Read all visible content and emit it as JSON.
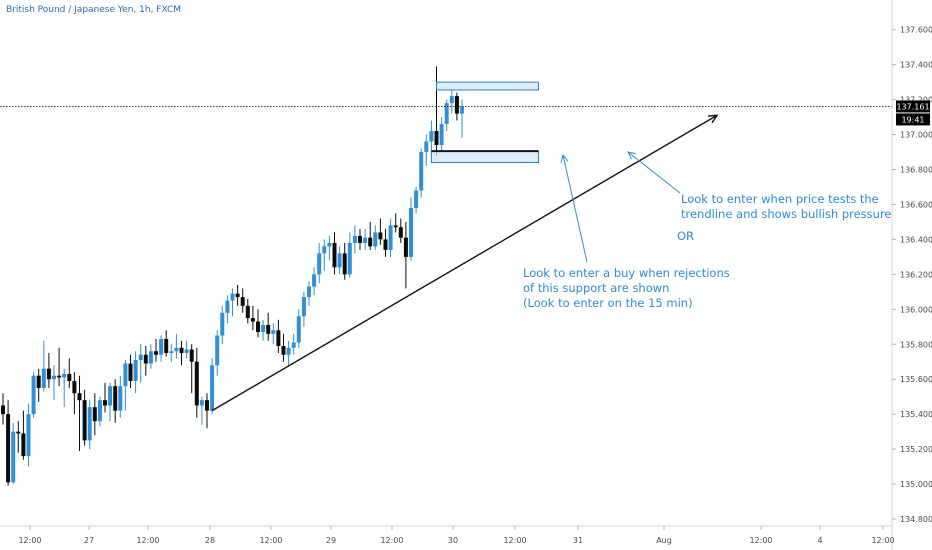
{
  "header": {
    "symbol_label": "British Pound / Japanese Yen, 1h, FXCM"
  },
  "price_axis": {
    "ticks": [
      "137.600",
      "137.400",
      "137.200",
      "137.000",
      "136.800",
      "136.600",
      "136.400",
      "136.200",
      "136.000",
      "135.800",
      "135.600",
      "135.400",
      "135.200",
      "135.000",
      "134.800"
    ],
    "last_price": "137.161",
    "countdown": "19:41"
  },
  "time_axis": {
    "ticks": [
      "12:00",
      "27",
      "12:00",
      "28",
      "12:00",
      "29",
      "12:00",
      "30",
      "12:00",
      "31",
      "Aug",
      "12:00",
      "4",
      "12:00"
    ]
  },
  "annotations": {
    "note1": [
      "Look to enter when price tests the",
      "trendline and shows bullish pressure"
    ],
    "or": "OR",
    "note2": [
      "Look to enter a buy when rejections",
      " of this support are shown",
      "(Look to enter on the 15 min)"
    ]
  },
  "colors": {
    "up": "#2f8fd8",
    "down": "#0b0b0b",
    "annotation": "#2e8cd0",
    "zone_fill": "#cfe6fa",
    "zone_border": "#2a7fc8"
  },
  "chart_data": {
    "type": "candlestick",
    "title": "British Pound / Japanese Yen, 1h, FXCM",
    "ylim": [
      134.76,
      137.77
    ],
    "candles": [
      {
        "o": 135.45,
        "h": 135.52,
        "l": 135.34,
        "c": 135.4
      },
      {
        "o": 135.4,
        "h": 135.48,
        "l": 134.99,
        "c": 135.01
      },
      {
        "o": 135.01,
        "h": 135.35,
        "l": 135.0,
        "c": 135.3
      },
      {
        "o": 135.3,
        "h": 135.36,
        "l": 135.18,
        "c": 135.29
      },
      {
        "o": 135.29,
        "h": 135.42,
        "l": 135.14,
        "c": 135.16
      },
      {
        "o": 135.16,
        "h": 135.46,
        "l": 135.1,
        "c": 135.4
      },
      {
        "o": 135.4,
        "h": 135.64,
        "l": 135.38,
        "c": 135.62
      },
      {
        "o": 135.62,
        "h": 135.66,
        "l": 135.47,
        "c": 135.55
      },
      {
        "o": 135.55,
        "h": 135.82,
        "l": 135.53,
        "c": 135.66
      },
      {
        "o": 135.66,
        "h": 135.75,
        "l": 135.55,
        "c": 135.6
      },
      {
        "o": 135.6,
        "h": 135.68,
        "l": 135.48,
        "c": 135.62
      },
      {
        "o": 135.62,
        "h": 135.78,
        "l": 135.56,
        "c": 135.61
      },
      {
        "o": 135.61,
        "h": 135.66,
        "l": 135.44,
        "c": 135.63
      },
      {
        "o": 135.63,
        "h": 135.72,
        "l": 135.55,
        "c": 135.59
      },
      {
        "o": 135.59,
        "h": 135.64,
        "l": 135.4,
        "c": 135.52
      },
      {
        "o": 135.52,
        "h": 135.62,
        "l": 135.19,
        "c": 135.48
      },
      {
        "o": 135.48,
        "h": 135.54,
        "l": 135.22,
        "c": 135.25
      },
      {
        "o": 135.25,
        "h": 135.48,
        "l": 135.2,
        "c": 135.44
      },
      {
        "o": 135.44,
        "h": 135.52,
        "l": 135.28,
        "c": 135.36
      },
      {
        "o": 135.36,
        "h": 135.5,
        "l": 135.33,
        "c": 135.48
      },
      {
        "o": 135.48,
        "h": 135.58,
        "l": 135.41,
        "c": 135.45
      },
      {
        "o": 135.45,
        "h": 135.58,
        "l": 135.36,
        "c": 135.56
      },
      {
        "o": 135.56,
        "h": 135.6,
        "l": 135.35,
        "c": 135.42
      },
      {
        "o": 135.42,
        "h": 135.62,
        "l": 135.38,
        "c": 135.56
      },
      {
        "o": 135.56,
        "h": 135.71,
        "l": 135.42,
        "c": 135.69
      },
      {
        "o": 135.69,
        "h": 135.74,
        "l": 135.55,
        "c": 135.59
      },
      {
        "o": 135.59,
        "h": 135.76,
        "l": 135.52,
        "c": 135.71
      },
      {
        "o": 135.71,
        "h": 135.8,
        "l": 135.58,
        "c": 135.74
      },
      {
        "o": 135.74,
        "h": 135.79,
        "l": 135.62,
        "c": 135.69
      },
      {
        "o": 135.69,
        "h": 135.8,
        "l": 135.66,
        "c": 135.76
      },
      {
        "o": 135.76,
        "h": 135.83,
        "l": 135.7,
        "c": 135.74
      },
      {
        "o": 135.74,
        "h": 135.85,
        "l": 135.7,
        "c": 135.83
      },
      {
        "o": 135.83,
        "h": 135.88,
        "l": 135.73,
        "c": 135.75
      },
      {
        "o": 135.75,
        "h": 135.8,
        "l": 135.7,
        "c": 135.76
      },
      {
        "o": 135.76,
        "h": 135.86,
        "l": 135.72,
        "c": 135.78
      },
      {
        "o": 135.78,
        "h": 135.82,
        "l": 135.68,
        "c": 135.75
      },
      {
        "o": 135.75,
        "h": 135.82,
        "l": 135.72,
        "c": 135.77
      },
      {
        "o": 135.77,
        "h": 135.8,
        "l": 135.52,
        "c": 135.7
      },
      {
        "o": 135.7,
        "h": 135.78,
        "l": 135.38,
        "c": 135.45
      },
      {
        "o": 135.45,
        "h": 135.5,
        "l": 135.34,
        "c": 135.48
      },
      {
        "o": 135.48,
        "h": 135.52,
        "l": 135.32,
        "c": 135.42
      },
      {
        "o": 135.42,
        "h": 135.72,
        "l": 135.4,
        "c": 135.68
      },
      {
        "o": 135.68,
        "h": 135.88,
        "l": 135.62,
        "c": 135.85
      },
      {
        "o": 135.85,
        "h": 136.02,
        "l": 135.8,
        "c": 135.98
      },
      {
        "o": 135.98,
        "h": 136.08,
        "l": 135.92,
        "c": 136.05
      },
      {
        "o": 136.05,
        "h": 136.12,
        "l": 135.96,
        "c": 136.09
      },
      {
        "o": 136.09,
        "h": 136.14,
        "l": 136.02,
        "c": 136.07
      },
      {
        "o": 136.07,
        "h": 136.12,
        "l": 135.98,
        "c": 136.02
      },
      {
        "o": 136.02,
        "h": 136.06,
        "l": 135.92,
        "c": 135.95
      },
      {
        "o": 135.95,
        "h": 136.02,
        "l": 135.88,
        "c": 135.93
      },
      {
        "o": 135.93,
        "h": 136.0,
        "l": 135.84,
        "c": 135.87
      },
      {
        "o": 135.87,
        "h": 135.94,
        "l": 135.82,
        "c": 135.91
      },
      {
        "o": 135.91,
        "h": 135.98,
        "l": 135.82,
        "c": 135.86
      },
      {
        "o": 135.86,
        "h": 135.92,
        "l": 135.8,
        "c": 135.88
      },
      {
        "o": 135.88,
        "h": 135.94,
        "l": 135.75,
        "c": 135.79
      },
      {
        "o": 135.79,
        "h": 135.86,
        "l": 135.7,
        "c": 135.74
      },
      {
        "o": 135.74,
        "h": 135.82,
        "l": 135.68,
        "c": 135.78
      },
      {
        "o": 135.78,
        "h": 135.86,
        "l": 135.74,
        "c": 135.81
      },
      {
        "o": 135.81,
        "h": 136.0,
        "l": 135.78,
        "c": 135.96
      },
      {
        "o": 135.96,
        "h": 136.1,
        "l": 135.9,
        "c": 136.07
      },
      {
        "o": 136.07,
        "h": 136.16,
        "l": 136.02,
        "c": 136.13
      },
      {
        "o": 136.13,
        "h": 136.24,
        "l": 136.08,
        "c": 136.2
      },
      {
        "o": 136.2,
        "h": 136.38,
        "l": 136.15,
        "c": 136.32
      },
      {
        "o": 136.32,
        "h": 136.4,
        "l": 136.22,
        "c": 136.36
      },
      {
        "o": 136.36,
        "h": 136.42,
        "l": 136.28,
        "c": 136.38
      },
      {
        "o": 136.38,
        "h": 136.44,
        "l": 136.2,
        "c": 136.24
      },
      {
        "o": 136.24,
        "h": 136.36,
        "l": 136.2,
        "c": 136.32
      },
      {
        "o": 136.32,
        "h": 136.38,
        "l": 136.17,
        "c": 136.2
      },
      {
        "o": 136.2,
        "h": 136.44,
        "l": 136.18,
        "c": 136.38
      },
      {
        "o": 136.38,
        "h": 136.48,
        "l": 136.32,
        "c": 136.42
      },
      {
        "o": 136.42,
        "h": 136.46,
        "l": 136.34,
        "c": 136.38
      },
      {
        "o": 136.38,
        "h": 136.46,
        "l": 136.34,
        "c": 136.41
      },
      {
        "o": 136.41,
        "h": 136.5,
        "l": 136.34,
        "c": 136.36
      },
      {
        "o": 136.36,
        "h": 136.48,
        "l": 136.34,
        "c": 136.44
      },
      {
        "o": 136.44,
        "h": 136.52,
        "l": 136.37,
        "c": 136.4
      },
      {
        "o": 136.4,
        "h": 136.46,
        "l": 136.3,
        "c": 136.34
      },
      {
        "o": 136.34,
        "h": 136.52,
        "l": 136.3,
        "c": 136.48
      },
      {
        "o": 136.48,
        "h": 136.55,
        "l": 136.44,
        "c": 136.47
      },
      {
        "o": 136.47,
        "h": 136.52,
        "l": 136.38,
        "c": 136.41
      },
      {
        "o": 136.41,
        "h": 136.5,
        "l": 136.12,
        "c": 136.3
      },
      {
        "o": 136.3,
        "h": 136.64,
        "l": 136.28,
        "c": 136.58
      },
      {
        "o": 136.58,
        "h": 136.7,
        "l": 136.55,
        "c": 136.68
      },
      {
        "o": 136.68,
        "h": 136.92,
        "l": 136.64,
        "c": 136.9
      },
      {
        "o": 136.9,
        "h": 137.0,
        "l": 136.82,
        "c": 136.96
      },
      {
        "o": 136.96,
        "h": 137.08,
        "l": 136.88,
        "c": 137.02
      },
      {
        "o": 137.02,
        "h": 137.39,
        "l": 136.88,
        "c": 136.94
      },
      {
        "o": 136.94,
        "h": 137.1,
        "l": 136.9,
        "c": 137.06
      },
      {
        "o": 137.06,
        "h": 137.2,
        "l": 137.02,
        "c": 137.18
      },
      {
        "o": 137.18,
        "h": 137.26,
        "l": 137.12,
        "c": 137.22
      },
      {
        "o": 137.22,
        "h": 137.24,
        "l": 137.08,
        "c": 137.12
      },
      {
        "o": 137.12,
        "h": 137.2,
        "l": 136.98,
        "c": 137.16
      }
    ],
    "trendline": [
      {
        "i": 41,
        "p": 135.42
      },
      {
        "i": 140,
        "p": 137.11
      }
    ],
    "resistance_zone": {
      "i0": 85,
      "i1": 105,
      "p0": 137.255,
      "p1": 137.3
    },
    "support_zone": {
      "i0": 84,
      "i1": 105,
      "p0": 136.84,
      "p1": 136.905
    },
    "last_price": 137.161
  }
}
